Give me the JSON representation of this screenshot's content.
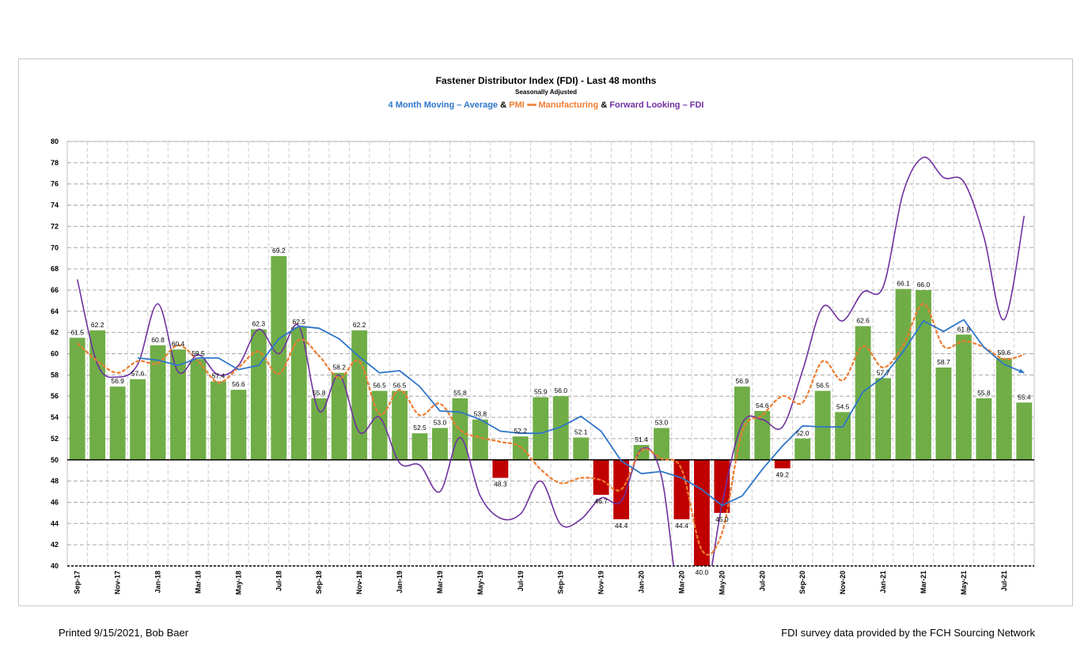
{
  "header": {
    "title": "Fastener Distributor Index (FDI) - Last 48 months",
    "subtitle": "Seasonally Adjusted"
  },
  "legend": {
    "avg_label": "4 Month Moving – Average",
    "amp1": "&",
    "pmi_label": "PMI",
    "pmi_dash": "▪▪▪▪",
    "pmi_label2": "Manufacturing",
    "amp2": "&",
    "fl_label": "Forward Looking – FDI"
  },
  "footer": {
    "printed": "Printed 9/15/2021, Bob Baer",
    "source": "FDI survey data provided by the FCH Sourcing Network"
  },
  "colors": {
    "bar_positive": "#70ad47",
    "bar_negative": "#c00000",
    "avg_line": "#2e75c9",
    "pmi_line": "#ed7d31",
    "forward_line": "#7030a0",
    "grid": "#a6a6a6"
  },
  "chart_data": {
    "type": "bar",
    "title": "Fastener Distributor Index (FDI) - Last 48 months",
    "ylim": [
      40,
      80
    ],
    "baseline": 50,
    "grid": true,
    "y_ticks": [
      40,
      42,
      44,
      46,
      48,
      50,
      52,
      54,
      56,
      58,
      60,
      62,
      64,
      66,
      68,
      70,
      72,
      74,
      76,
      78,
      80
    ],
    "categories": [
      "Sep-17",
      "Oct-17",
      "Nov-17",
      "Dec-17",
      "Jan-18",
      "Feb-18",
      "Mar-18",
      "Apr-18",
      "May-18",
      "Jun-18",
      "Jul-18",
      "Aug-18",
      "Sep-18",
      "Oct-18",
      "Nov-18",
      "Dec-18",
      "Jan-19",
      "Feb-19",
      "Mar-19",
      "Apr-19",
      "May-19",
      "Jun-19",
      "Jul-19",
      "Aug-19",
      "Sep-19",
      "Oct-19",
      "Nov-19",
      "Dec-19",
      "Jan-20",
      "Feb-20",
      "Mar-20",
      "Apr-20",
      "May-20",
      "Jun-20",
      "Jul-20",
      "Aug-20",
      "Sep-20",
      "Oct-20",
      "Nov-20",
      "Dec-20",
      "Jan-21",
      "Feb-21",
      "Mar-21",
      "Apr-21",
      "May-21",
      "Jun-21",
      "Jul-21",
      "Aug-21"
    ],
    "tick_labels": [
      "Sep-17",
      "",
      "Nov-17",
      "",
      "Jan-18",
      "",
      "Mar-18",
      "",
      "May-18",
      "",
      "Jul-18",
      "",
      "Sep-18",
      "",
      "Nov-18",
      "",
      "Jan-19",
      "",
      "Mar-19",
      "",
      "May-19",
      "",
      "Jul-19",
      "",
      "Sep-19",
      "",
      "Nov-19",
      "",
      "Jan-20",
      "",
      "Mar-20",
      "",
      "May-20",
      "",
      "Jul-20",
      "",
      "Sep-20",
      "",
      "Nov-20",
      "",
      "Jan-21",
      "",
      "Mar-21",
      "",
      "May-21",
      "",
      "Jul-21",
      ""
    ],
    "series": [
      {
        "name": "FDI",
        "type": "bar",
        "values": [
          61.5,
          62.2,
          56.9,
          57.6,
          60.8,
          60.4,
          59.5,
          57.4,
          56.6,
          62.3,
          69.2,
          62.5,
          55.8,
          58.2,
          62.2,
          56.5,
          56.5,
          52.5,
          53.0,
          55.8,
          53.8,
          48.3,
          52.2,
          55.9,
          56.0,
          52.1,
          46.7,
          44.4,
          51.4,
          53.0,
          44.4,
          40.0,
          45.0,
          56.9,
          54.6,
          49.2,
          52.0,
          56.5,
          54.5,
          62.6,
          57.7,
          66.1,
          66.0,
          58.7,
          61.8,
          55.8,
          59.6,
          55.4
        ],
        "labels": [
          "61.5",
          "62.2",
          "56.9",
          "57.6",
          "60.8",
          "60.4",
          "59.5",
          "57.4",
          "56.6",
          "62.3",
          "69.2",
          "62.5",
          "55.8",
          "58.2",
          "62.2",
          "56.5",
          "56.5",
          "52.5",
          "53.0",
          "55.8",
          "53.8",
          "48.3",
          "52.2",
          "55.9",
          "56.0",
          "52.1",
          "46.7",
          "44.4",
          "51.4",
          "53.0",
          "44.4",
          "40.0",
          "45.0",
          "56.9",
          "54.6",
          "49.2",
          "52.0",
          "56.5",
          "54.5",
          "62.6",
          "57.7",
          "66.1",
          "66.0",
          "58.7",
          "61.8",
          "55.8",
          "59.6",
          "55.4"
        ]
      },
      {
        "name": "4 Month Moving – Average",
        "type": "line",
        "values": [
          null,
          null,
          null,
          59.6,
          59.4,
          58.9,
          59.6,
          59.6,
          58.5,
          58.9,
          61.4,
          62.6,
          62.4,
          61.4,
          59.7,
          58.2,
          58.4,
          56.9,
          54.6,
          54.5,
          53.8,
          52.7,
          52.5,
          52.5,
          53.1,
          54.1,
          52.7,
          49.9,
          48.7,
          48.9,
          48.3,
          47.2,
          45.7,
          46.6,
          49.1,
          51.3,
          53.2,
          53.1,
          53.1,
          56.4,
          57.8,
          60.2,
          63.1,
          62.1,
          63.2,
          60.6,
          59.0,
          58.2
        ]
      },
      {
        "name": "PMI – Manufacturing",
        "type": "line",
        "values": [
          61.0,
          59.3,
          58.2,
          59.3,
          59.1,
          60.8,
          59.3,
          57.3,
          58.7,
          60.2,
          58.1,
          61.3,
          59.8,
          57.7,
          59.3,
          54.3,
          56.6,
          54.2,
          55.3,
          52.8,
          52.1,
          51.7,
          51.2,
          49.1,
          47.8,
          48.3,
          48.1,
          47.2,
          50.9,
          50.1,
          49.1,
          41.5,
          43.1,
          52.6,
          54.2,
          56.0,
          55.4,
          59.3,
          57.5,
          60.7,
          58.7,
          60.8,
          64.7,
          60.7,
          61.2,
          60.6,
          59.5,
          59.9
        ]
      },
      {
        "name": "Forward Looking – FDI",
        "type": "line",
        "values": [
          67.0,
          59.0,
          57.8,
          59.0,
          64.7,
          58.3,
          59.9,
          58.0,
          58.9,
          62.3,
          60.0,
          62.6,
          54.6,
          58.0,
          52.6,
          54.0,
          49.7,
          49.5,
          47.0,
          52.1,
          46.6,
          44.5,
          44.9,
          48.0,
          43.9,
          44.4,
          46.4,
          46.1,
          51.0,
          48.4,
          35.0,
          35.0,
          45.8,
          53.4,
          53.8,
          53.1,
          58.4,
          64.4,
          63.1,
          65.8,
          66.3,
          75.2,
          78.5,
          76.6,
          76.2,
          71.0,
          63.2,
          73.0
        ]
      }
    ]
  }
}
